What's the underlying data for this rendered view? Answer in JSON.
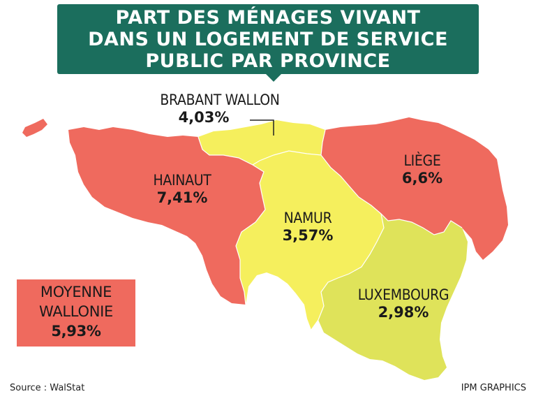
{
  "title": {
    "lines": [
      "PART DES MÉNAGES VIVANT",
      "DANS UN LOGEMENT DE SERVICE",
      "PUBLIC PAR  PROVINCE"
    ]
  },
  "colors": {
    "title_bg": "#1b6e5d",
    "high": "#ef6a5e",
    "mid": "#f5ef5d",
    "low": "#dfe35a"
  },
  "provinces": [
    {
      "name": "BRABANT WALLON",
      "value": "4,03%"
    },
    {
      "name": "HAINAUT",
      "value": "7,41%"
    },
    {
      "name": "LIÈGE",
      "value": "6,6%"
    },
    {
      "name": "NAMUR",
      "value": "3,57%"
    },
    {
      "name": "LUXEMBOURG",
      "value": "2,98%"
    }
  ],
  "average": {
    "line1": "MOYENNE",
    "line2": "WALLONIE",
    "value": "5,93%"
  },
  "source": "Source : WalStat",
  "credit": "IPM GRAPHICS"
}
